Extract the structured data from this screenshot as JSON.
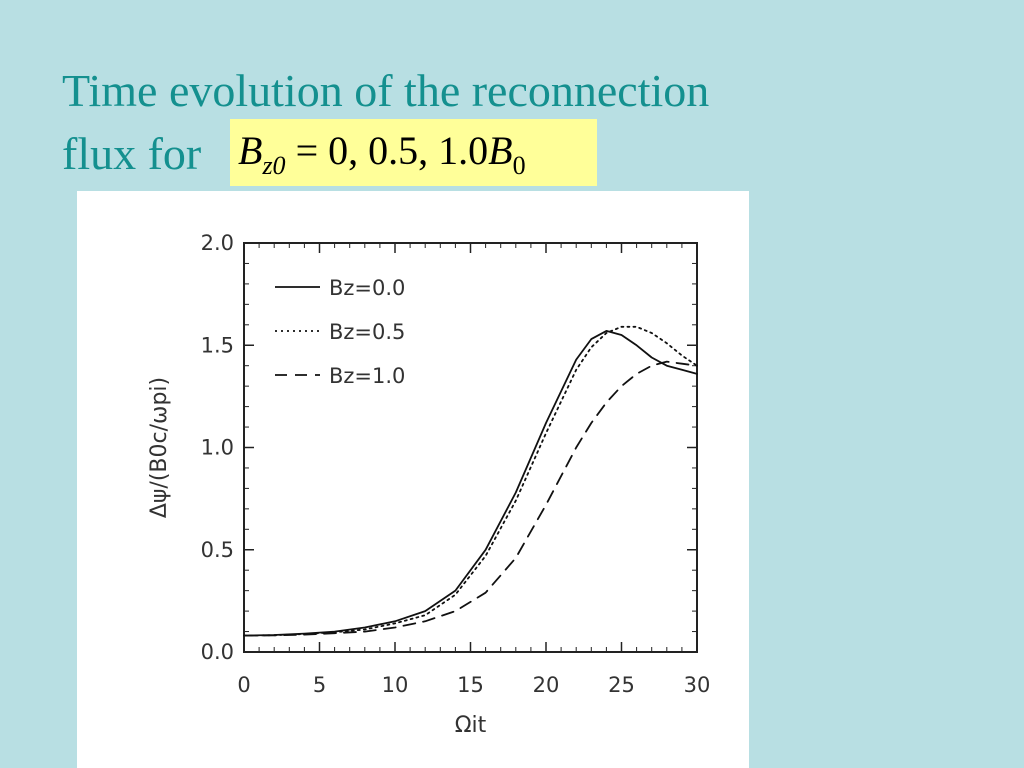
{
  "slide": {
    "title_line1": "Time evolution of the reconnection",
    "title_line2": "flux for",
    "formula": {
      "symbol": "B",
      "subscript": "z0",
      "equals_values": " = 0, 0.5, 1.0",
      "symbol2": "B",
      "subscript2": "0"
    },
    "colors": {
      "background": "#b8dfe3",
      "title": "#14908f",
      "formula_highlight": "#ffff99"
    }
  },
  "chart_data": {
    "type": "line",
    "xlabel": "Ωit",
    "ylabel": "Δψ/(B0c/ωpi)",
    "xlim": [
      0,
      30
    ],
    "ylim": [
      0,
      2.0
    ],
    "xticks": [
      "0",
      "5",
      "10",
      "15",
      "20",
      "25",
      "30"
    ],
    "yticks": [
      "0.0",
      "0.5",
      "1.0",
      "1.5",
      "2.0"
    ],
    "grid": false,
    "legend_position": "top-left",
    "x": [
      0,
      2,
      4,
      6,
      8,
      10,
      12,
      14,
      16,
      18,
      20,
      22,
      23,
      24,
      25,
      26,
      27,
      28,
      29,
      30
    ],
    "series": [
      {
        "name": "Bz=0.0",
        "style": "solid",
        "values": [
          0.08,
          0.083,
          0.09,
          0.1,
          0.12,
          0.15,
          0.2,
          0.3,
          0.5,
          0.78,
          1.12,
          1.43,
          1.53,
          1.57,
          1.55,
          1.5,
          1.44,
          1.4,
          1.38,
          1.36
        ]
      },
      {
        "name": "Bz=0.5",
        "style": "dotted",
        "values": [
          0.08,
          0.082,
          0.088,
          0.097,
          0.11,
          0.14,
          0.18,
          0.28,
          0.47,
          0.74,
          1.07,
          1.38,
          1.49,
          1.56,
          1.59,
          1.59,
          1.56,
          1.51,
          1.45,
          1.4
        ]
      },
      {
        "name": "Bz=1.0",
        "style": "dashed",
        "values": [
          0.08,
          0.081,
          0.085,
          0.092,
          0.1,
          0.12,
          0.15,
          0.2,
          0.29,
          0.46,
          0.72,
          1.0,
          1.12,
          1.22,
          1.3,
          1.36,
          1.4,
          1.42,
          1.41,
          1.4
        ]
      }
    ]
  }
}
